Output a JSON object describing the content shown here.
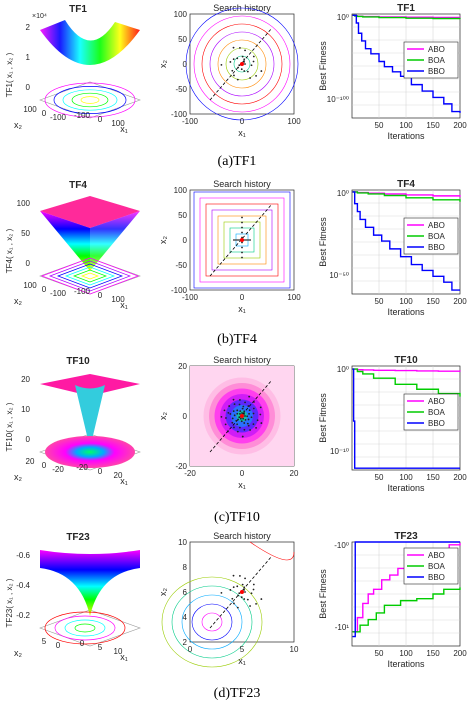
{
  "colors": {
    "ABO": "#ff00ff",
    "BOA": "#00cc00",
    "BBO": "#0000ff",
    "grid": "#d0d0d0",
    "axis": "#262626",
    "search_line": "#000000",
    "best_point": "#ff0000"
  },
  "rows": [
    {
      "caption": "(a)TF1",
      "surface": {
        "title": "TF1",
        "zlabel": "TF1( x₁ , x₂ )",
        "xlabel": "x₁",
        "ylabel": "x₂",
        "zticks": [
          "0",
          "1",
          "2"
        ],
        "z_exp": "×10⁴",
        "xticks": [
          "-100",
          "0",
          "100"
        ],
        "yticks": [
          "-100",
          "0",
          "100"
        ],
        "kind": "bowl"
      },
      "search": {
        "title": "Search history",
        "xlabel": "x₁",
        "ylabel": "x₂",
        "xticks": [
          "-100",
          "0",
          "100"
        ],
        "yticks": [
          "100",
          "50",
          "0",
          "-50",
          "-100"
        ],
        "contour": "circles",
        "cloud": "sparse"
      },
      "chart_data": {
        "type": "line",
        "title": "TF1",
        "xlabel": "Iterations",
        "ylabel": "Best Fitness",
        "yscale": "log",
        "xlim": [
          0,
          200
        ],
        "xticks": [
          "50",
          "100",
          "150",
          "200"
        ],
        "yticks": [
          "10⁰",
          "10⁻¹⁰⁰"
        ],
        "ylim_exp": [
          -160,
          2
        ],
        "grid": true,
        "legend": "center-right",
        "series": [
          {
            "name": "ABO",
            "x": [
              1,
              5,
              10,
              20,
              50,
              100,
              150,
              200
            ],
            "y_exp": [
              0,
              -1,
              -1.5,
              -2,
              -2.5,
              -3,
              -3.3,
              -3.5
            ]
          },
          {
            "name": "BOA",
            "x": [
              1,
              5,
              10,
              20,
              50,
              100,
              150,
              200
            ],
            "y_exp": [
              0,
              -1,
              -1.8,
              -2.5,
              -3.5,
              -4.5,
              -5,
              -5.5
            ]
          },
          {
            "name": "BBO",
            "x": [
              1,
              8,
              12,
              18,
              25,
              35,
              50,
              60,
              75,
              90,
              110,
              130,
              150,
              170,
              185,
              200
            ],
            "y_exp": [
              0,
              -12,
              -28,
              -40,
              -52,
              -60,
              -72,
              -80,
              -88,
              -95,
              -108,
              -118,
              -128,
              -138,
              -150,
              -152
            ]
          }
        ]
      }
    },
    {
      "caption": "(b)TF4",
      "surface": {
        "title": "TF4",
        "zlabel": "TF4( x₁ , x₂ )",
        "xlabel": "x₁",
        "ylabel": "x₂",
        "zticks": [
          "0",
          "50",
          "100"
        ],
        "z_exp": "",
        "xticks": [
          "-100",
          "0",
          "100"
        ],
        "yticks": [
          "-100",
          "0",
          "100"
        ],
        "kind": "pyramid"
      },
      "search": {
        "title": "Search history",
        "xlabel": "x₁",
        "ylabel": "x₂",
        "xticks": [
          "-100",
          "0",
          "100"
        ],
        "yticks": [
          "100",
          "50",
          "0",
          "-50",
          "-100"
        ],
        "contour": "squares",
        "cloud": "cross"
      },
      "chart_data": {
        "type": "line",
        "title": "TF4",
        "xlabel": "Iterations",
        "ylabel": "Best Fitness",
        "yscale": "log",
        "xlim": [
          0,
          200
        ],
        "xticks": [
          "50",
          "100",
          "150",
          "200"
        ],
        "yticks": [
          "10⁰",
          "10⁻⁵⁰"
        ],
        "ylim_exp": [
          -52,
          1
        ],
        "grid": true,
        "legend": "center-right",
        "series": [
          {
            "name": "ABO",
            "x": [
              1,
              10,
              30,
              60,
              100,
              150,
              200
            ],
            "y_exp": [
              0,
              -0.3,
              -0.6,
              -1,
              -1.5,
              -2,
              -2.5
            ]
          },
          {
            "name": "BOA",
            "x": [
              1,
              10,
              30,
              60,
              100,
              150,
              200
            ],
            "y_exp": [
              0,
              -0.5,
              -1,
              -1.8,
              -3,
              -4,
              -5
            ]
          },
          {
            "name": "BBO",
            "x": [
              1,
              5,
              10,
              15,
              25,
              40,
              55,
              70,
              90,
              110,
              130,
              150,
              170,
              185,
              200
            ],
            "y_exp": [
              0,
              -6,
              -10,
              -14,
              -18,
              -22,
              -25,
              -29,
              -33,
              -37,
              -40,
              -43,
              -46,
              -50,
              -50
            ]
          }
        ]
      }
    },
    {
      "caption": "(c)TF10",
      "surface": {
        "title": "TF10",
        "zlabel": "TF10( x₁ , x₂ )",
        "xlabel": "x₁",
        "ylabel": "x₂",
        "zticks": [
          "0",
          "10",
          "20"
        ],
        "z_exp": "",
        "xticks": [
          "-20",
          "0",
          "20"
        ],
        "yticks": [
          "-20",
          "0",
          "20"
        ],
        "kind": "funnel"
      },
      "search": {
        "title": "Search history",
        "xlabel": "x₁",
        "ylabel": "x₂",
        "xticks": [
          "-20",
          "0",
          "20"
        ],
        "yticks": [
          "20",
          "0",
          "-20"
        ],
        "contour": "rings",
        "cloud": "dense"
      },
      "chart_data": {
        "type": "line",
        "title": "TF10",
        "xlabel": "Iterations",
        "ylabel": "Best Fitness",
        "yscale": "log",
        "xlim": [
          0,
          200
        ],
        "xticks": [
          "50",
          "100",
          "150",
          "200"
        ],
        "yticks": [
          "10⁰",
          "10⁻¹⁰"
        ],
        "ylim_exp": [
          -16,
          1
        ],
        "grid": true,
        "legend": "center-right",
        "series": [
          {
            "name": "ABO",
            "x": [
              1,
              10,
              20,
              40,
              80,
              120,
              160,
              200
            ],
            "y_exp": [
              0.5,
              0.4,
              0.35,
              0.3,
              0.25,
              0.2,
              0.15,
              0.1
            ]
          },
          {
            "name": "BOA",
            "x": [
              1,
              10,
              20,
              40,
              80,
              120,
              160,
              200
            ],
            "y_exp": [
              0.5,
              0.1,
              -0.3,
              -1,
              -2,
              -2.8,
              -3.5,
              -4
            ]
          },
          {
            "name": "BBO",
            "x": [
              1,
              3,
              5,
              200
            ],
            "y_exp": [
              0.5,
              -8,
              -15.7,
              -15.7
            ]
          }
        ]
      }
    },
    {
      "caption": "(d)TF23",
      "surface": {
        "title": "TF23",
        "zlabel": "TF23( x₁ , x₂ )",
        "xlabel": "x₁",
        "ylabel": "x₂",
        "zticks": [
          "-0.2",
          "-0.4",
          "-0.6"
        ],
        "z_exp": "",
        "xticks": [
          "0",
          "5",
          "10"
        ],
        "yticks": [
          "0",
          "5"
        ],
        "kind": "well"
      },
      "search": {
        "title": "Search history",
        "xlabel": "x₁",
        "ylabel": "x₂",
        "xticks": [
          "0",
          "5",
          "10"
        ],
        "yticks": [
          "10",
          "8",
          "6",
          "4",
          "2"
        ],
        "contour": "shekel",
        "cloud": "scatter"
      },
      "chart_data": {
        "type": "line",
        "title": "TF23",
        "xlabel": "Iterations",
        "ylabel": "Best Fitness",
        "yscale": "log",
        "xlim": [
          0,
          200
        ],
        "xticks": [
          "50",
          "100",
          "150",
          "200"
        ],
        "yticks": [
          "-10⁰",
          "-10¹"
        ],
        "ylim_exp": [
          -0.1,
          1.0
        ],
        "grid": true,
        "legend": "top-right",
        "series": [
          {
            "name": "ABO",
            "x": [
              1,
              10,
              20,
              30,
              40,
              55,
              70,
              85,
              100,
              120,
              140,
              160,
              180,
              200
            ],
            "y_exp": [
              0.05,
              0.2,
              0.35,
              0.45,
              0.5,
              0.6,
              0.65,
              0.72,
              0.78,
              0.82,
              0.88,
              0.92,
              0.97,
              0.99
            ]
          },
          {
            "name": "BOA",
            "x": [
              1,
              15,
              30,
              45,
              60,
              90,
              120,
              150,
              170,
              200
            ],
            "y_exp": [
              0.05,
              0.12,
              0.18,
              0.25,
              0.33,
              0.38,
              0.4,
              0.45,
              0.5,
              0.52
            ]
          },
          {
            "name": "BBO",
            "x": [
              1,
              5,
              6,
              200
            ],
            "y_exp": [
              0.0,
              0.0,
              1.0,
              1.0
            ]
          }
        ]
      }
    }
  ]
}
